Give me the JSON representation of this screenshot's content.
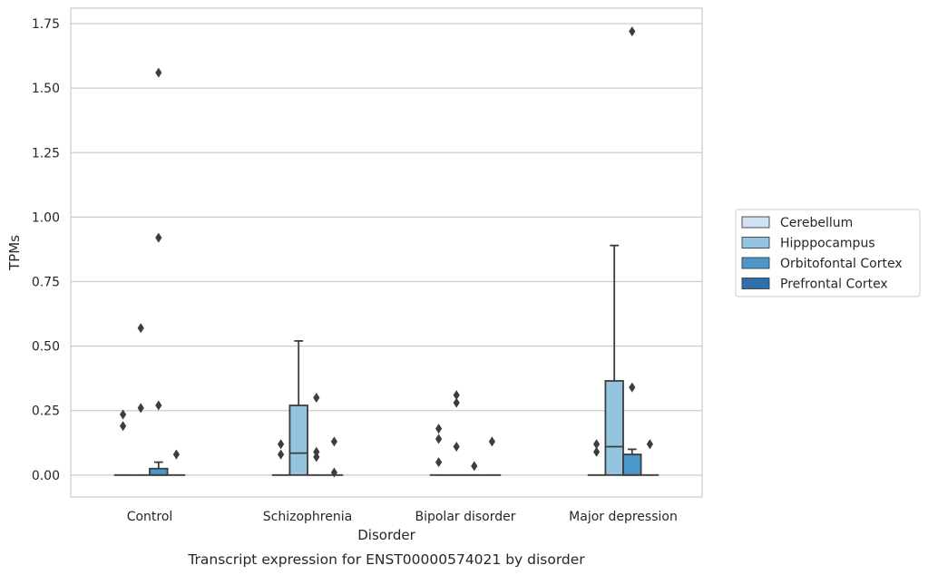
{
  "caption": "Transcript expression for ENST00000574021 by disorder",
  "chart_data": {
    "type": "box",
    "xlabel": "Disorder",
    "ylabel": "TPMs",
    "ylim": [
      -0.085,
      1.81
    ],
    "yticks": [
      0.0,
      0.25,
      0.5,
      0.75,
      1.0,
      1.25,
      1.5,
      1.75
    ],
    "ytick_labels": [
      "0.00",
      "0.25",
      "0.50",
      "0.75",
      "1.00",
      "1.25",
      "1.50",
      "1.75"
    ],
    "grid": "horizontal",
    "legend_position": "right",
    "categories": [
      "Control",
      "Schizophrenia",
      "Bipolar disorder",
      "Major depression"
    ],
    "series": [
      {
        "name": "Cerebellum",
        "color": "#d0e1f2",
        "boxes": [
          {
            "q1": 0,
            "median": 0,
            "q3": 0,
            "whisker_low": 0,
            "whisker_high": 0,
            "outliers": [
              0.19,
              0.235
            ]
          },
          {
            "q1": 0,
            "median": 0,
            "q3": 0,
            "whisker_low": 0,
            "whisker_high": 0,
            "outliers": [
              0.08,
              0.12
            ]
          },
          {
            "q1": 0,
            "median": 0,
            "q3": 0,
            "whisker_low": 0,
            "whisker_high": 0,
            "outliers": [
              0.05,
              0.14,
              0.18
            ]
          },
          {
            "q1": 0,
            "median": 0,
            "q3": 0,
            "whisker_low": 0,
            "whisker_high": 0,
            "outliers": [
              0.09,
              0.12
            ]
          }
        ]
      },
      {
        "name": "Hipppocampus",
        "color": "#94c4df",
        "boxes": [
          {
            "q1": 0,
            "median": 0,
            "q3": 0,
            "whisker_low": 0,
            "whisker_high": 0,
            "outliers": [
              0.26,
              0.57
            ]
          },
          {
            "q1": 0,
            "median": 0.085,
            "q3": 0.27,
            "whisker_low": 0,
            "whisker_high": 0.52,
            "outliers": []
          },
          {
            "q1": 0,
            "median": 0,
            "q3": 0,
            "whisker_low": 0,
            "whisker_high": 0,
            "outliers": [
              0.11,
              0.28,
              0.31
            ]
          },
          {
            "q1": 0,
            "median": 0.11,
            "q3": 0.365,
            "whisker_low": 0,
            "whisker_high": 0.89,
            "outliers": []
          }
        ]
      },
      {
        "name": "Orbitofontal Cortex",
        "color": "#4a98c9",
        "boxes": [
          {
            "q1": 0,
            "median": 0,
            "q3": 0.025,
            "whisker_low": 0,
            "whisker_high": 0.05,
            "outliers": [
              0.27,
              0.92,
              1.56
            ]
          },
          {
            "q1": 0,
            "median": 0,
            "q3": 0,
            "whisker_low": 0,
            "whisker_high": 0,
            "outliers": [
              0.07,
              0.09,
              0.3
            ]
          },
          {
            "q1": 0,
            "median": 0,
            "q3": 0,
            "whisker_low": 0,
            "whisker_high": 0,
            "outliers": [
              0.035
            ]
          },
          {
            "q1": 0,
            "median": 0,
            "q3": 0.08,
            "whisker_low": 0,
            "whisker_high": 0.1,
            "outliers": [
              0.34,
              1.72
            ]
          }
        ]
      },
      {
        "name": "Prefrontal Cortex",
        "color": "#2e6fae",
        "boxes": [
          {
            "q1": 0,
            "median": 0,
            "q3": 0,
            "whisker_low": 0,
            "whisker_high": 0,
            "outliers": [
              0.08
            ]
          },
          {
            "q1": 0,
            "median": 0,
            "q3": 0,
            "whisker_low": 0,
            "whisker_high": 0,
            "outliers": [
              0.01,
              0.13
            ]
          },
          {
            "q1": 0,
            "median": 0,
            "q3": 0,
            "whisker_low": 0,
            "whisker_high": 0,
            "outliers": [
              0.13
            ]
          },
          {
            "q1": 0,
            "median": 0,
            "q3": 0,
            "whisker_low": 0,
            "whisker_high": 0,
            "outliers": [
              0.12
            ]
          }
        ]
      }
    ]
  }
}
